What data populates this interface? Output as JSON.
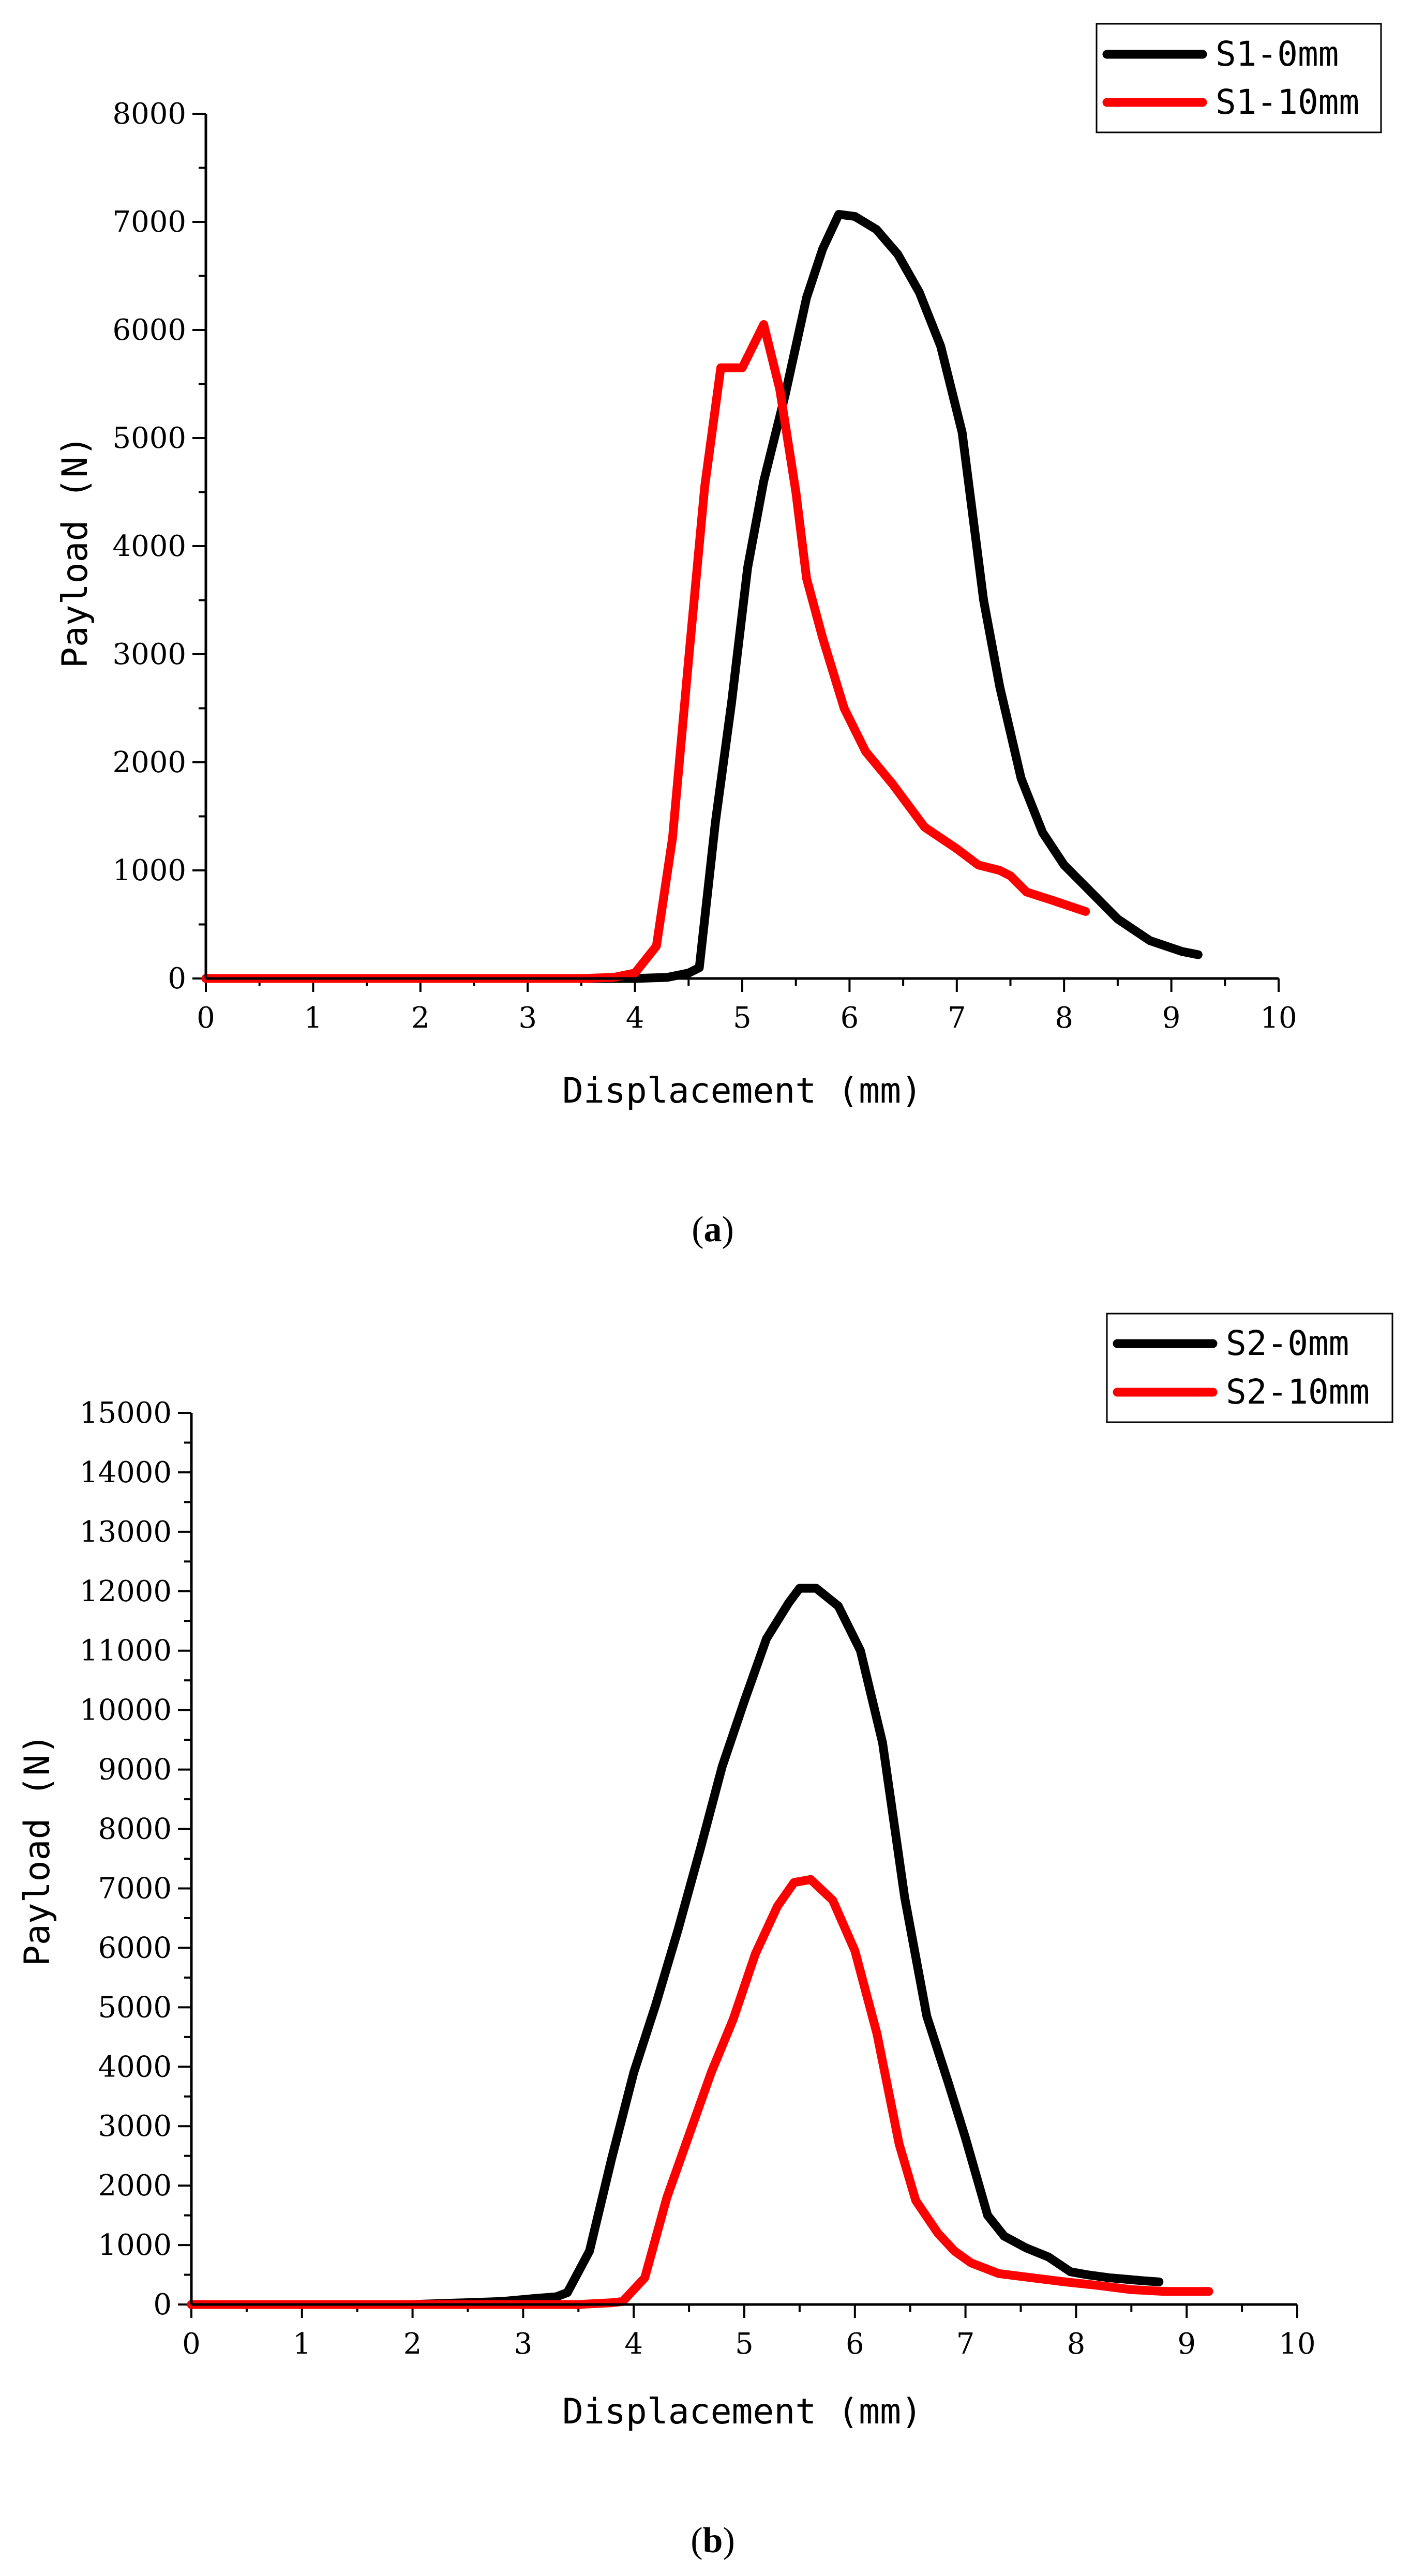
{
  "chart_data": [
    {
      "type": "line",
      "caption_label": "a",
      "xlabel": "Displacement (mm)",
      "ylabel": "Payload (N)",
      "xlim": [
        0,
        10
      ],
      "ylim": [
        0,
        8000
      ],
      "x_ticks": [
        0,
        1,
        2,
        3,
        4,
        5,
        6,
        7,
        8,
        9,
        10
      ],
      "y_ticks": [
        0,
        1000,
        2000,
        3000,
        4000,
        5000,
        6000,
        7000,
        8000
      ],
      "legend_position": "top-right",
      "grid": false,
      "series": [
        {
          "name": "S1-0mm",
          "color": "#000000",
          "x": [
            0,
            1,
            2,
            3,
            3.5,
            4,
            4.3,
            4.5,
            4.6,
            4.75,
            4.9,
            5.05,
            5.2,
            5.4,
            5.6,
            5.75,
            5.9,
            6.05,
            6.25,
            6.45,
            6.65,
            6.85,
            7.05,
            7.25,
            7.4,
            7.6,
            7.8,
            8,
            8.2,
            8.5,
            8.8,
            9.1,
            9.25
          ],
          "y": [
            0,
            0,
            0,
            0,
            0,
            0,
            10,
            50,
            100,
            1450,
            2550,
            3800,
            4600,
            5400,
            6300,
            6750,
            7070,
            7050,
            6930,
            6700,
            6350,
            5850,
            5050,
            3500,
            2700,
            1850,
            1350,
            1050,
            850,
            550,
            350,
            250,
            220
          ]
        },
        {
          "name": "S1-10mm",
          "color": "#ff0000",
          "x": [
            0,
            1,
            2,
            3,
            3.5,
            3.8,
            4.0,
            4.2,
            4.35,
            4.5,
            4.65,
            4.8,
            5.0,
            5.2,
            5.35,
            5.5,
            5.6,
            5.75,
            5.95,
            6.15,
            6.4,
            6.7,
            7.0,
            7.2,
            7.4,
            7.5,
            7.65,
            7.9,
            8.2
          ],
          "y": [
            0,
            0,
            0,
            0,
            0,
            10,
            50,
            300,
            1300,
            2950,
            4550,
            5650,
            5650,
            6050,
            5450,
            4500,
            3700,
            3150,
            2500,
            2100,
            1800,
            1400,
            1200,
            1050,
            1000,
            950,
            800,
            720,
            620
          ]
        }
      ]
    },
    {
      "type": "line",
      "caption_label": "b",
      "xlabel": "Displacement (mm)",
      "ylabel": "Payload (N)",
      "xlim": [
        0,
        10
      ],
      "ylim": [
        0,
        15000
      ],
      "x_ticks": [
        0,
        1,
        2,
        3,
        4,
        5,
        6,
        7,
        8,
        9,
        10
      ],
      "y_ticks": [
        0,
        1000,
        2000,
        3000,
        4000,
        5000,
        6000,
        7000,
        8000,
        9000,
        10000,
        11000,
        12000,
        13000,
        14000,
        15000
      ],
      "legend_position": "top-right",
      "grid": false,
      "series": [
        {
          "name": "S2-0mm",
          "color": "#000000",
          "x": [
            0,
            1,
            2,
            2.8,
            3.1,
            3.3,
            3.4,
            3.6,
            3.8,
            4.0,
            4.2,
            4.4,
            4.6,
            4.8,
            5.0,
            5.2,
            5.4,
            5.5,
            5.65,
            5.85,
            6.05,
            6.25,
            6.45,
            6.65,
            6.85,
            7.0,
            7.2,
            7.35,
            7.55,
            7.75,
            7.95,
            8.1,
            8.3,
            8.6,
            8.75
          ],
          "y": [
            0,
            0,
            0,
            50,
            100,
            130,
            200,
            900,
            2450,
            3900,
            5050,
            6300,
            7650,
            9050,
            10150,
            11200,
            11800,
            12050,
            12050,
            11750,
            11000,
            9450,
            6850,
            4850,
            3700,
            2800,
            1500,
            1150,
            950,
            800,
            550,
            500,
            450,
            400,
            380
          ]
        },
        {
          "name": "S2-10mm",
          "color": "#ff0000",
          "x": [
            0,
            1,
            2,
            3,
            3.5,
            3.8,
            3.9,
            4.1,
            4.3,
            4.5,
            4.7,
            4.9,
            5.1,
            5.3,
            5.45,
            5.6,
            5.8,
            6.0,
            6.2,
            6.4,
            6.55,
            6.75,
            6.9,
            7.05,
            7.3,
            7.6,
            7.9,
            8.2,
            8.5,
            8.8,
            9.2
          ],
          "y": [
            0,
            0,
            0,
            0,
            0,
            30,
            50,
            450,
            1800,
            2850,
            3900,
            4800,
            5900,
            6700,
            7100,
            7150,
            6800,
            5950,
            4550,
            2700,
            1750,
            1200,
            900,
            700,
            520,
            450,
            380,
            320,
            250,
            220,
            220
          ]
        }
      ]
    }
  ]
}
